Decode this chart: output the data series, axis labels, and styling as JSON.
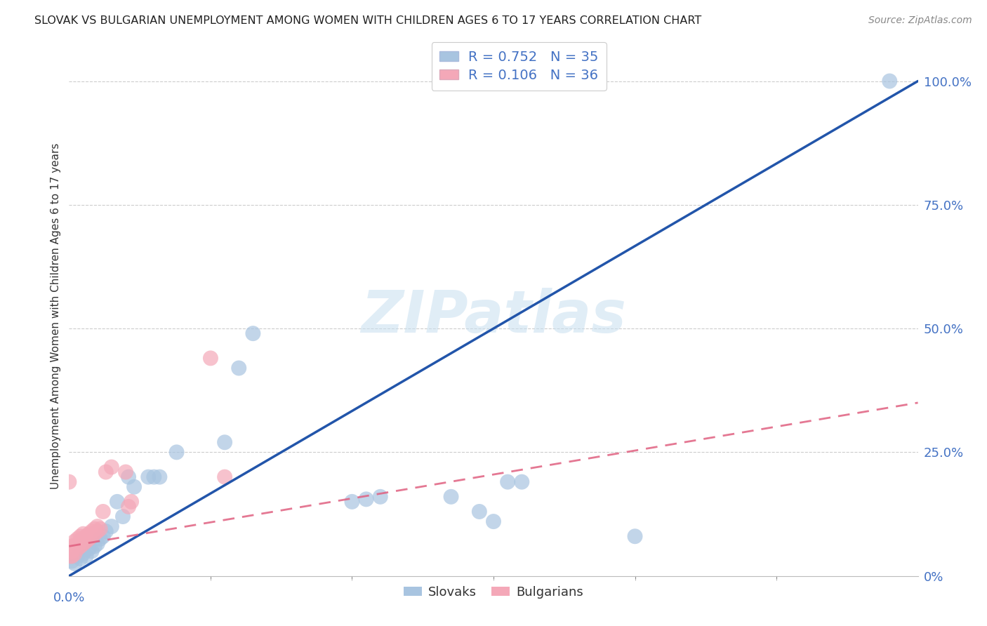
{
  "title": "SLOVAK VS BULGARIAN UNEMPLOYMENT AMONG WOMEN WITH CHILDREN AGES 6 TO 17 YEARS CORRELATION CHART",
  "source": "Source: ZipAtlas.com",
  "tick_color": "#4472c4",
  "ylabel": "Unemployment Among Women with Children Ages 6 to 17 years",
  "xmin": 0.0,
  "xmax": 0.3,
  "ymin": 0.0,
  "ymax": 1.05,
  "ytick_labels_right": [
    "0%",
    "25.0%",
    "50.0%",
    "75.0%",
    "100.0%"
  ],
  "ytick_values_right": [
    0.0,
    0.25,
    0.5,
    0.75,
    1.0
  ],
  "blue_color": "#a8c4e0",
  "pink_color": "#f4a8b8",
  "blue_line_color": "#2255aa",
  "pink_line_color": "#e06080",
  "legend_R_blue": "0.752",
  "legend_N_blue": "35",
  "legend_R_pink": "0.106",
  "legend_N_pink": "36",
  "legend_label_blue": "Slovaks",
  "legend_label_pink": "Bulgarians",
  "watermark": "ZIPatlas",
  "slovaks_x": [
    0.001,
    0.002,
    0.003,
    0.004,
    0.005,
    0.006,
    0.007,
    0.008,
    0.009,
    0.01,
    0.011,
    0.012,
    0.013,
    0.015,
    0.017,
    0.019,
    0.021,
    0.023,
    0.028,
    0.03,
    0.032,
    0.038,
    0.055,
    0.06,
    0.065,
    0.1,
    0.105,
    0.11,
    0.135,
    0.145,
    0.15,
    0.155,
    0.16,
    0.2,
    0.29
  ],
  "slovaks_y": [
    0.03,
    0.025,
    0.04,
    0.035,
    0.045,
    0.04,
    0.055,
    0.05,
    0.06,
    0.065,
    0.075,
    0.08,
    0.09,
    0.1,
    0.15,
    0.12,
    0.2,
    0.18,
    0.2,
    0.2,
    0.2,
    0.25,
    0.27,
    0.42,
    0.49,
    0.15,
    0.155,
    0.16,
    0.16,
    0.13,
    0.11,
    0.19,
    0.19,
    0.08,
    1.0
  ],
  "bulgarians_x": [
    0.0005,
    0.001,
    0.001,
    0.001,
    0.002,
    0.002,
    0.002,
    0.003,
    0.003,
    0.003,
    0.004,
    0.004,
    0.004,
    0.005,
    0.005,
    0.005,
    0.006,
    0.006,
    0.007,
    0.007,
    0.008,
    0.008,
    0.009,
    0.009,
    0.01,
    0.01,
    0.011,
    0.012,
    0.013,
    0.015,
    0.02,
    0.021,
    0.022,
    0.05,
    0.055,
    0.0
  ],
  "bulgarians_y": [
    0.04,
    0.04,
    0.05,
    0.06,
    0.045,
    0.06,
    0.07,
    0.055,
    0.065,
    0.075,
    0.06,
    0.07,
    0.08,
    0.065,
    0.075,
    0.085,
    0.07,
    0.08,
    0.075,
    0.085,
    0.08,
    0.09,
    0.085,
    0.095,
    0.09,
    0.1,
    0.095,
    0.13,
    0.21,
    0.22,
    0.21,
    0.14,
    0.15,
    0.44,
    0.2,
    0.19
  ],
  "blue_line_x": [
    0.0,
    0.3
  ],
  "blue_line_y": [
    0.0,
    1.0
  ],
  "pink_line_x": [
    0.0,
    0.3
  ],
  "pink_line_y": [
    0.06,
    0.35
  ]
}
